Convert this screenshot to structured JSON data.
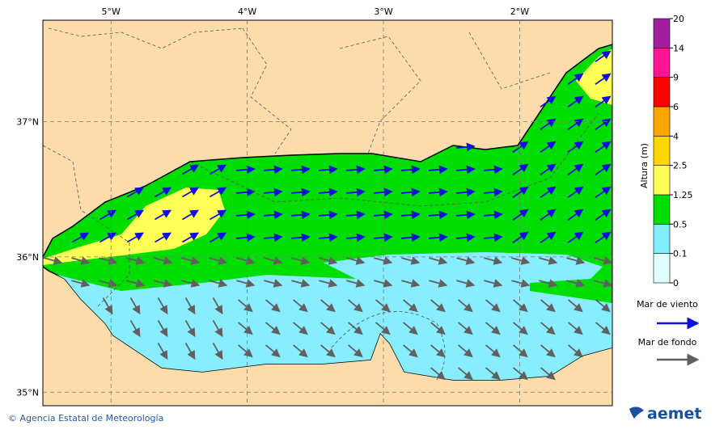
{
  "map": {
    "xlim": [
      -5.5,
      -1.32
    ],
    "ylim": [
      34.9,
      37.75
    ],
    "lon_ticks": [
      {
        "value": -5,
        "label": "5°W"
      },
      {
        "value": -4,
        "label": "4°W"
      },
      {
        "value": -3,
        "label": "3°W"
      },
      {
        "value": -2,
        "label": "2°W"
      }
    ],
    "lat_ticks": [
      {
        "value": 37,
        "label": "37°N"
      },
      {
        "value": 36,
        "label": "36°N"
      },
      {
        "value": 35,
        "label": "35°N"
      }
    ]
  },
  "colorbar": {
    "label": "Altura (m)",
    "levels": [
      0,
      0.1,
      0.5,
      1.25,
      2.5,
      4,
      6,
      9,
      14,
      20
    ],
    "colors": [
      "#e0ffff",
      "#80eeff",
      "#00dd00",
      "#ffff55",
      "#ffd700",
      "#ffa500",
      "#ff0000",
      "#ff1493",
      "#a020a0"
    ]
  },
  "legend": {
    "wind_sea": "Mar de viento",
    "swell": "Mar de fondo"
  },
  "footer": {
    "copyright": "© Agencia Estatal de Meteorología",
    "logo": "aemet"
  }
}
